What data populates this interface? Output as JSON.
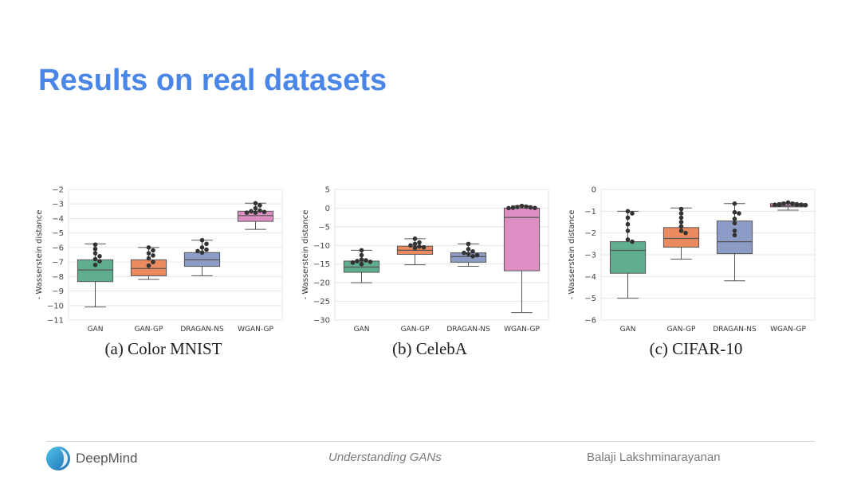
{
  "slide": {
    "title": "Results on real datasets"
  },
  "footer": {
    "brand": "DeepMind",
    "center_text": "Understanding GANs",
    "author": "Balaji Lakshminarayanan"
  },
  "colors": {
    "title": "#4a86e8",
    "GAN": "#5fae8f",
    "GAN-GP": "#ea8a5e",
    "DRAGAN-NS": "#8c9cc6",
    "WGAN-GP": "#dd8fc4",
    "points": "#333333"
  },
  "chart_data": [
    {
      "type": "box",
      "caption": "(a) Color MNIST",
      "ylabel": "- Wasserstein distance",
      "xlabel": "",
      "categories": [
        "GAN",
        "GAN-GP",
        "DRAGAN-NS",
        "WGAN-GP"
      ],
      "ylim": [
        -11,
        -2
      ],
      "yticks": [
        -2,
        -3,
        -4,
        -5,
        -6,
        -7,
        -8,
        -9,
        -10,
        -11
      ],
      "ytick_labels": [
        "−2",
        "−3",
        "−4",
        "−5",
        "−6",
        "−7",
        "−8",
        "−9",
        "−10",
        "−11"
      ],
      "grid": true,
      "series": [
        {
          "category": "GAN",
          "whisker_low": -10.1,
          "q1": -8.35,
          "median": -7.55,
          "q3": -6.85,
          "whisker_high": -5.75,
          "points": [
            -5.8,
            -6.1,
            -6.4,
            -6.6,
            -6.8,
            -6.95,
            -7.2
          ]
        },
        {
          "category": "GAN-GP",
          "whisker_low": -8.2,
          "q1": -7.95,
          "median": -7.45,
          "q3": -6.85,
          "whisker_high": -6.0,
          "points": [
            -6.0,
            -6.2,
            -6.4,
            -6.55,
            -6.75,
            -7.0,
            -7.25
          ]
        },
        {
          "category": "DRAGAN-NS",
          "whisker_low": -7.95,
          "q1": -7.3,
          "median": -6.85,
          "q3": -6.35,
          "whisker_high": -5.5,
          "points": [
            -5.5,
            -5.75,
            -6.0,
            -6.15,
            -6.25,
            -6.35
          ]
        },
        {
          "category": "WGAN-GP",
          "whisker_low": -4.75,
          "q1": -4.2,
          "median": -3.8,
          "q3": -3.5,
          "whisker_high": -2.95,
          "points": [
            -2.95,
            -3.1,
            -3.3,
            -3.45,
            -3.5,
            -3.55,
            -3.6,
            -3.6
          ]
        }
      ]
    },
    {
      "type": "box",
      "caption": "(b) CelebA",
      "ylabel": "- Wasserstein distance",
      "xlabel": "",
      "categories": [
        "GAN",
        "GAN-GP",
        "DRAGAN-NS",
        "WGAN-GP"
      ],
      "ylim": [
        -30,
        5
      ],
      "yticks": [
        5,
        0,
        -5,
        -10,
        -15,
        -20,
        -25,
        -30
      ],
      "ytick_labels": [
        "5",
        "0",
        "−5",
        "−10",
        "−15",
        "−20",
        "−25",
        "−30"
      ],
      "grid": true,
      "series": [
        {
          "category": "GAN",
          "whisker_low": -20.0,
          "q1": -17.2,
          "median": -15.8,
          "q3": -14.2,
          "whisker_high": -11.3,
          "points": [
            -11.3,
            -12.6,
            -13.8,
            -14.0,
            -14.2,
            -14.4,
            -14.6,
            -15.0
          ]
        },
        {
          "category": "GAN-GP",
          "whisker_low": -15.2,
          "q1": -12.4,
          "median": -11.3,
          "q3": -10.2,
          "whisker_high": -8.2,
          "points": [
            -8.2,
            -9.2,
            -9.6,
            -10.0,
            -10.3,
            -10.5,
            -10.7
          ]
        },
        {
          "category": "DRAGAN-NS",
          "whisker_low": -15.6,
          "q1": -14.5,
          "median": -13.0,
          "q3": -12.0,
          "whisker_high": -9.6,
          "points": [
            -9.6,
            -11.0,
            -11.6,
            -12.0,
            -12.3,
            -12.6,
            -12.9
          ]
        },
        {
          "category": "WGAN-GP",
          "whisker_low": -28.0,
          "q1": -16.8,
          "median": -2.5,
          "q3": 0.0,
          "whisker_high": 0.6,
          "points": [
            0.6,
            0.4,
            0.3,
            0.2,
            0.1,
            0.05,
            0.0
          ]
        }
      ]
    },
    {
      "type": "box",
      "caption": "(c) CIFAR-10",
      "ylabel": "- Wasserstein distance",
      "xlabel": "",
      "categories": [
        "GAN",
        "GAN-GP",
        "DRAGAN-NS",
        "WGAN-GP"
      ],
      "ylim": [
        -6,
        0
      ],
      "yticks": [
        0,
        -1,
        -2,
        -3,
        -4,
        -5,
        -6
      ],
      "ytick_labels": [
        "0",
        "−1",
        "−2",
        "−3",
        "−4",
        "−5",
        "−6"
      ],
      "grid": true,
      "series": [
        {
          "category": "GAN",
          "whisker_low": -5.0,
          "q1": -3.85,
          "median": -2.8,
          "q3": -2.4,
          "whisker_high": -1.0,
          "points": [
            -1.0,
            -1.1,
            -1.3,
            -1.6,
            -1.9,
            -2.3,
            -2.4
          ]
        },
        {
          "category": "GAN-GP",
          "whisker_low": -3.2,
          "q1": -2.65,
          "median": -2.25,
          "q3": -1.75,
          "whisker_high": -0.85,
          "points": [
            -0.9,
            -1.1,
            -1.3,
            -1.5,
            -1.7,
            -1.9,
            -2.0
          ]
        },
        {
          "category": "DRAGAN-NS",
          "whisker_low": -4.2,
          "q1": -2.95,
          "median": -2.4,
          "q3": -1.45,
          "whisker_high": -0.65,
          "points": [
            -0.65,
            -1.05,
            -1.1,
            -1.35,
            -1.55,
            -1.9,
            -2.1
          ]
        },
        {
          "category": "WGAN-GP",
          "whisker_low": -0.95,
          "q1": -0.8,
          "median": -0.75,
          "q3": -0.65,
          "whisker_high": -0.6,
          "points": [
            -0.6,
            -0.65,
            -0.65,
            -0.7,
            -0.7,
            -0.7,
            -0.7,
            -0.72
          ]
        }
      ]
    }
  ]
}
